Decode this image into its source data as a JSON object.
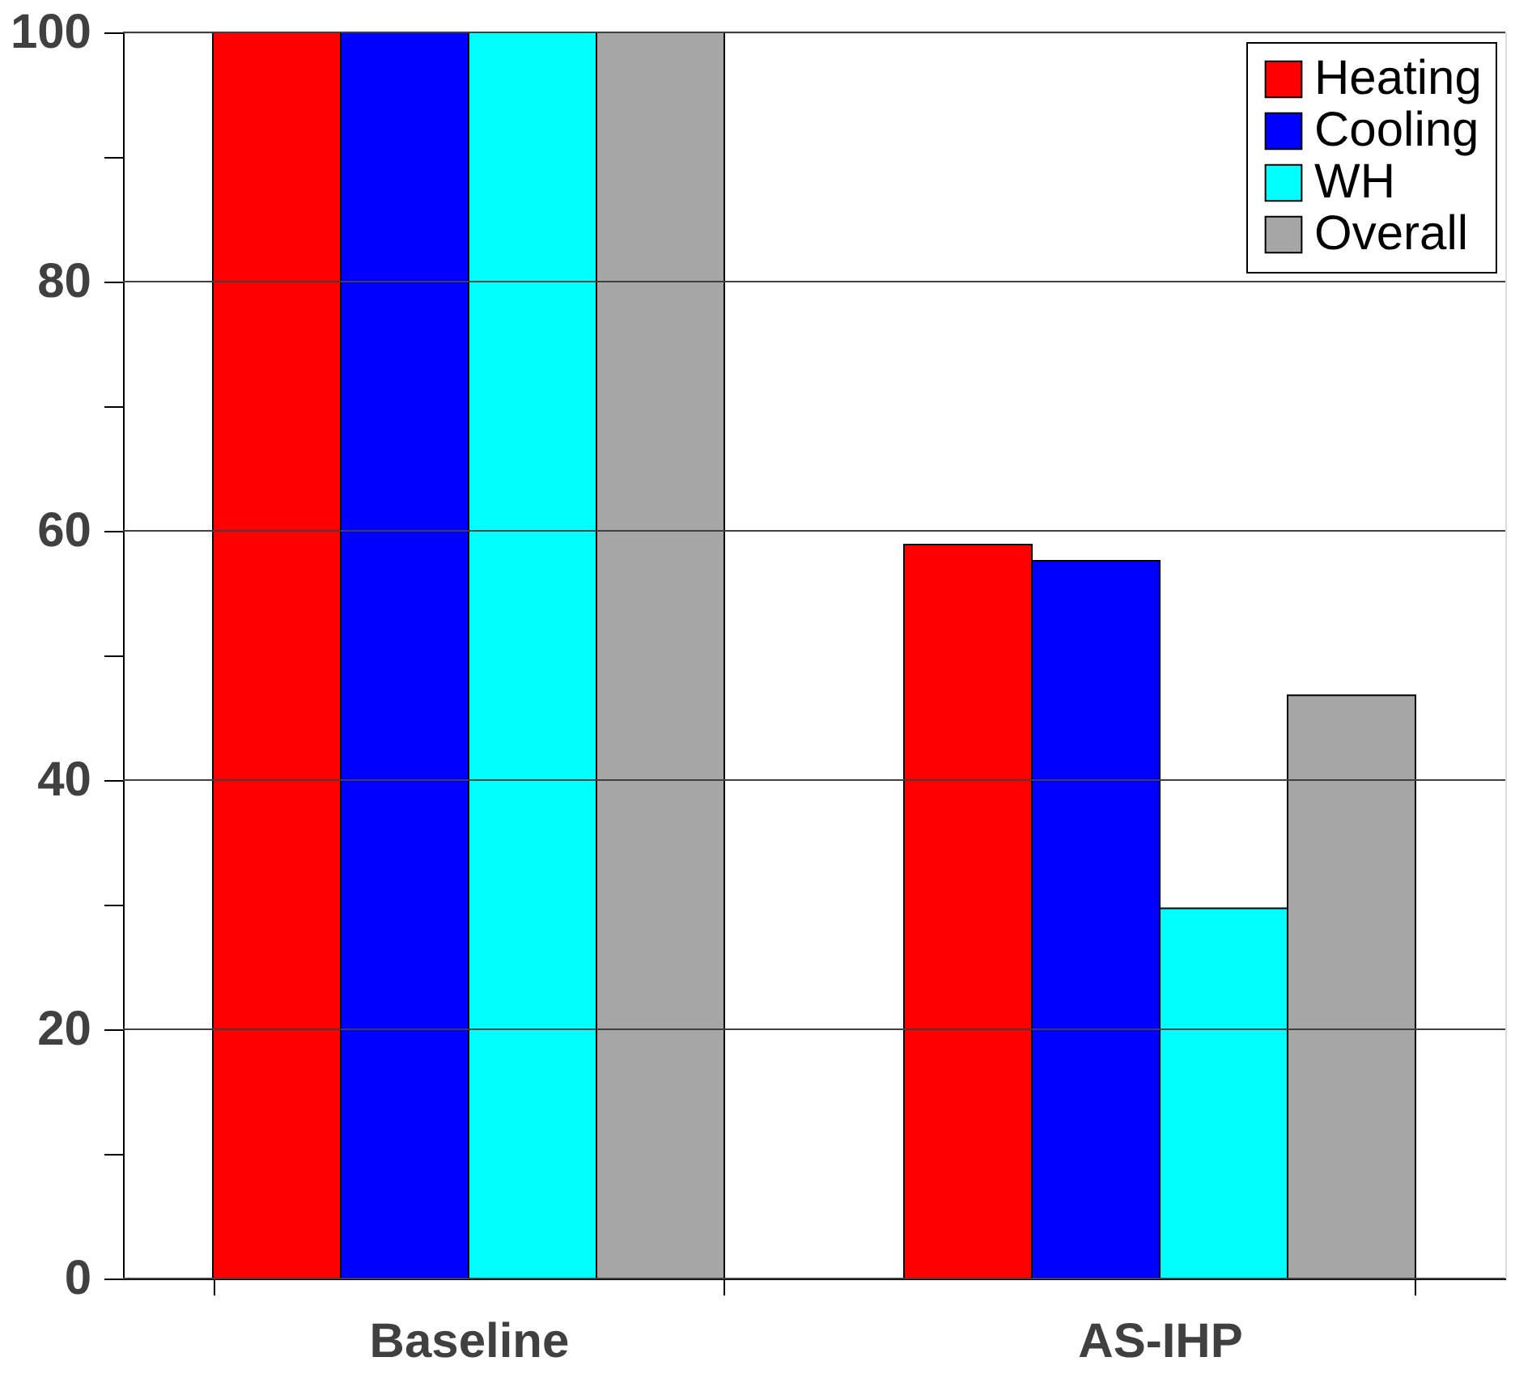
{
  "chart_data": {
    "type": "bar",
    "categories": [
      "Baseline",
      "AS-IHP"
    ],
    "series": [
      {
        "name": "Heating",
        "color": "#ff0000",
        "values": [
          100,
          58.9
        ]
      },
      {
        "name": "Cooling",
        "color": "#0000ff",
        "values": [
          100,
          57.6
        ]
      },
      {
        "name": "WH",
        "color": "#00ffff",
        "values": [
          100,
          29.7
        ]
      },
      {
        "name": "Overall",
        "color": "#a6a6a6",
        "values": [
          100,
          46.8
        ]
      }
    ],
    "ylim": [
      0,
      100
    ],
    "yticks": [
      0,
      {
        "value": 10,
        "label": null
      },
      20,
      {
        "value": 30,
        "label": null
      },
      40,
      {
        "value": 50,
        "label": null
      },
      60,
      {
        "value": 70,
        "label": null
      },
      80,
      {
        "value": 90,
        "label": null
      },
      100
    ],
    "grid": "y",
    "legend": "top right"
  }
}
